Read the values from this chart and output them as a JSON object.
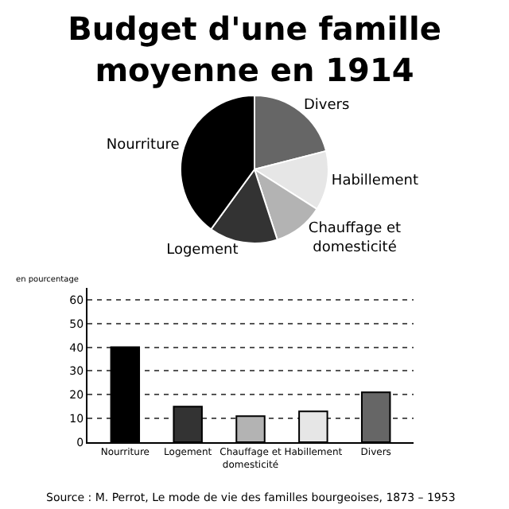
{
  "chart_data": [
    {
      "type": "pie",
      "title": "Budget d'une famille\nmoyenne en 1914",
      "categories": [
        "Divers",
        "Habillement",
        "Chauffage et\ndomesticité",
        "Logement",
        "Nourriture"
      ],
      "values": [
        21,
        13,
        11,
        15,
        40
      ],
      "colors": [
        "#666666",
        "#e6e6e6",
        "#b3b3b3",
        "#333333",
        "#000000"
      ],
      "legend": false
    },
    {
      "type": "bar",
      "ylabel": "en pourcentage",
      "categories": [
        "Nourriture",
        "Logement",
        "Chauffage et\ndomesticité",
        "Habillement",
        "Divers"
      ],
      "values": [
        40,
        15,
        11,
        13,
        21
      ],
      "colors": [
        "#000000",
        "#333333",
        "#b3b3b3",
        "#e6e6e6",
        "#666666"
      ],
      "ylim": [
        0,
        65
      ],
      "yticks": [
        0,
        10,
        20,
        30,
        40,
        50,
        60
      ],
      "grid": "y",
      "legend": false,
      "annotations": [
        "Source : M. Perrot, Le mode de vie des familles bourgeoises, 1873 – 1953"
      ]
    }
  ]
}
